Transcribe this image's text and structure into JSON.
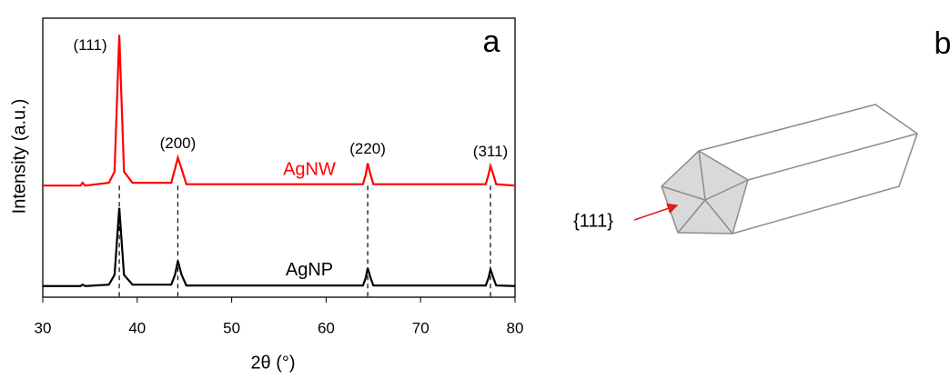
{
  "chart_data": {
    "type": "line",
    "panel_label": "a",
    "x_label": "2θ (°)",
    "y_label": "Intensity (a.u.)",
    "x": [
      30,
      34.0,
      34.2,
      34.5,
      37.0,
      37.6,
      38.1,
      38.6,
      39.5,
      43.6,
      44.0,
      44.3,
      44.7,
      45.2,
      63.9,
      64.2,
      64.4,
      64.7,
      65.0,
      76.9,
      77.2,
      77.4,
      77.7,
      78.0,
      80
    ],
    "series": [
      {
        "name": "AgNW",
        "color": "#ff0000",
        "values": [
          40,
          40,
          41,
          40,
          41,
          45,
          94,
          45,
          41,
          41,
          46,
          50,
          46,
          40.5,
          40.5,
          44,
          48,
          44,
          40.5,
          40.5,
          44,
          47,
          44,
          40.5,
          40
        ]
      },
      {
        "name": "AgNP",
        "color": "#000000",
        "values": [
          4,
          4,
          4.5,
          4,
          4.5,
          8,
          32,
          8,
          4.5,
          4.5,
          8,
          13,
          8,
          4.2,
          4.2,
          7,
          10.5,
          7,
          4.2,
          4.2,
          7,
          10,
          7,
          4.2,
          4
        ]
      }
    ],
    "annotations": [
      {
        "text": "(111)",
        "x": 38.1
      },
      {
        "text": "(200)",
        "x": 44.3
      },
      {
        "text": "(220)",
        "x": 64.4
      },
      {
        "text": "(311)",
        "x": 77.4
      }
    ],
    "xlim": [
      30,
      80
    ],
    "xticks": [
      30,
      40,
      50,
      60,
      70,
      80
    ],
    "ylim": [
      0,
      100
    ]
  },
  "diagram": {
    "panel_label": "b",
    "facet_label": "{111}"
  }
}
